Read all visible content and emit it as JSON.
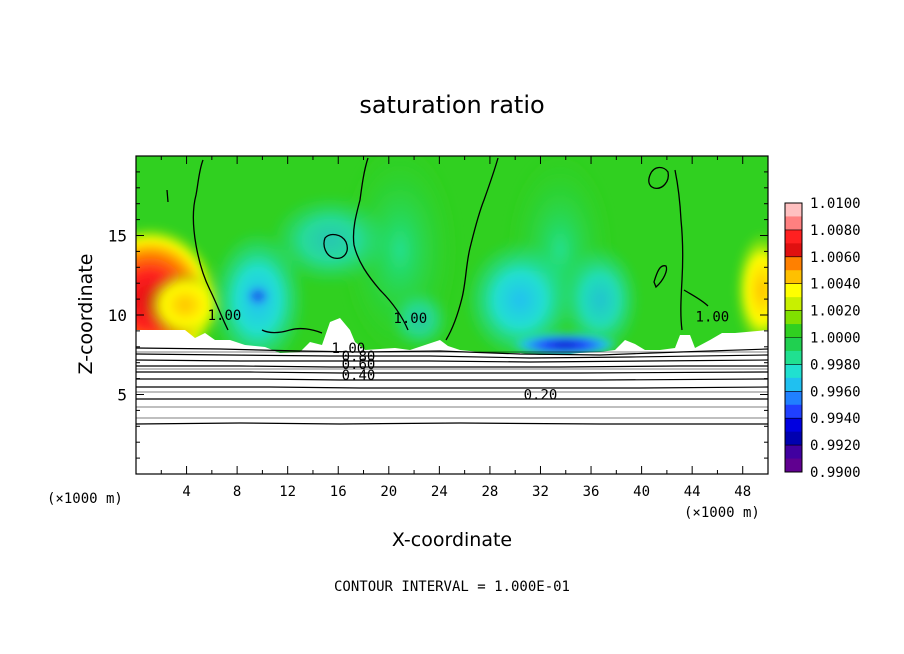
{
  "chart_data": {
    "type": "heatmap",
    "title": "saturation ratio",
    "xlabel": "X-coordinate",
    "ylabel": "Z-coordinate",
    "x_unit": "(×1000 m)",
    "y_unit": "(×1000 m)",
    "xlim": [
      0,
      50
    ],
    "ylim": [
      0,
      20
    ],
    "x_ticks": [
      4,
      8,
      12,
      16,
      20,
      24,
      28,
      32,
      36,
      40,
      44,
      48
    ],
    "y_ticks": [
      5,
      10,
      15
    ],
    "colorbar": {
      "levels": [
        "1.0100",
        "1.0080",
        "1.0060",
        "1.0040",
        "1.0020",
        "1.0000",
        "0.9980",
        "0.9960",
        "0.9940",
        "0.9920",
        "0.9900"
      ],
      "colors": [
        "#ffc0c0",
        "#ff8080",
        "#ff2020",
        "#e01010",
        "#ff8000",
        "#ffc000",
        "#ffff00",
        "#c8f000",
        "#80e000",
        "#30d020",
        "#20d050",
        "#20e090",
        "#20e0d0",
        "#20c0f0",
        "#2080ff",
        "#2040ff",
        "#0000e0",
        "#0000b0",
        "#4000a0",
        "#600090"
      ]
    },
    "contour_labels": [
      {
        "text": "1.00",
        "x": 7.0,
        "y": 9.7
      },
      {
        "text": "1.00",
        "x": 21.7,
        "y": 9.5
      },
      {
        "text": "1.00",
        "x": 45.6,
        "y": 9.6
      },
      {
        "text": "1.00",
        "x": 16.8,
        "y": 7.6
      },
      {
        "text": "0.80",
        "x": 17.6,
        "y": 7.1
      },
      {
        "text": "0.60",
        "x": 17.6,
        "y": 6.6
      },
      {
        "text": "0.40",
        "x": 17.6,
        "y": 5.9
      },
      {
        "text": "0.20",
        "x": 32.0,
        "y": 4.7
      }
    ],
    "contour_interval": "CONTOUR INTERVAL = 1.000E-01"
  },
  "colors": {
    "background_green": "#30d020",
    "warm_red": "#ff2020",
    "cool_cyan": "#20e0d0",
    "cool_blue": "#0000e0"
  }
}
